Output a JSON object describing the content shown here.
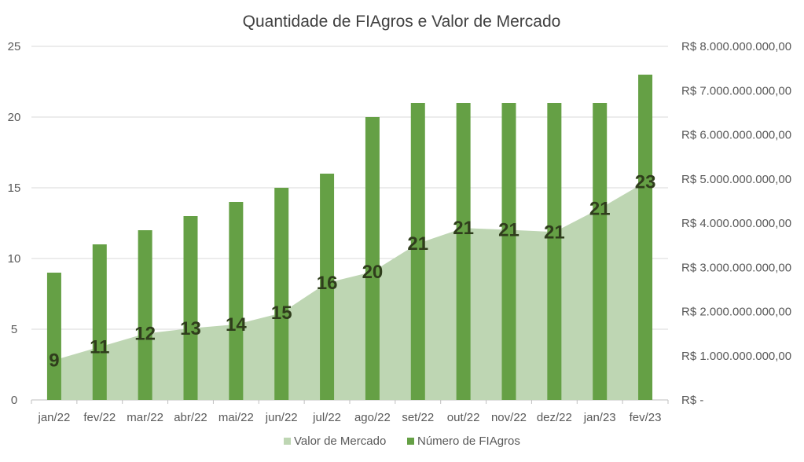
{
  "chart_data": {
    "type": "bar",
    "title": "Quantidade de FIAgros e Valor de Mercado",
    "categories": [
      "jan/22",
      "fev/22",
      "mar/22",
      "abr/22",
      "mai/22",
      "jun/22",
      "jul/22",
      "ago/22",
      "set/22",
      "out/22",
      "nov/22",
      "dez/22",
      "jan/23",
      "fev/23"
    ],
    "series": [
      {
        "name": "Valor de Mercado",
        "type": "area",
        "axis": "right",
        "color": "#bed6b3",
        "values": [
          900000000,
          1200000000,
          1500000000,
          1620000000,
          1710000000,
          1970000000,
          2650000000,
          2900000000,
          3540000000,
          3890000000,
          3850000000,
          3800000000,
          4330000000,
          4930000000
        ]
      },
      {
        "name": "Número de FIAgros",
        "type": "bar",
        "axis": "left",
        "color": "#65a045",
        "values": [
          9,
          11,
          12,
          13,
          14,
          15,
          16,
          20,
          21,
          21,
          21,
          21,
          21,
          23
        ]
      }
    ],
    "left_axis": {
      "ylim": [
        0,
        25
      ],
      "ticks": [
        "0",
        "5",
        "10",
        "15",
        "20",
        "25"
      ],
      "tick_values": [
        0,
        5,
        10,
        15,
        20,
        25
      ]
    },
    "right_axis": {
      "ylim": [
        0,
        8000000000
      ],
      "ticks": [
        "R$ -",
        "R$ 1.000.000.000,00",
        "R$ 2.000.000.000,00",
        "R$ 3.000.000.000,00",
        "R$ 4.000.000.000,00",
        "R$ 5.000.000.000,00",
        "R$ 6.000.000.000,00",
        "R$ 7.000.000.000,00",
        "R$ 8.000.000.000,00"
      ],
      "tick_values": [
        0,
        1000000000,
        2000000000,
        3000000000,
        4000000000,
        5000000000,
        6000000000,
        7000000000,
        8000000000
      ]
    },
    "data_labels": [
      "9",
      "11",
      "12",
      "13",
      "14",
      "15",
      "16",
      "20",
      "21",
      "21",
      "21",
      "21",
      "21",
      "23"
    ],
    "grid": true,
    "legend": {
      "position": "bottom",
      "entries": [
        "Valor de Mercado",
        "Número de FIAgros"
      ]
    }
  }
}
